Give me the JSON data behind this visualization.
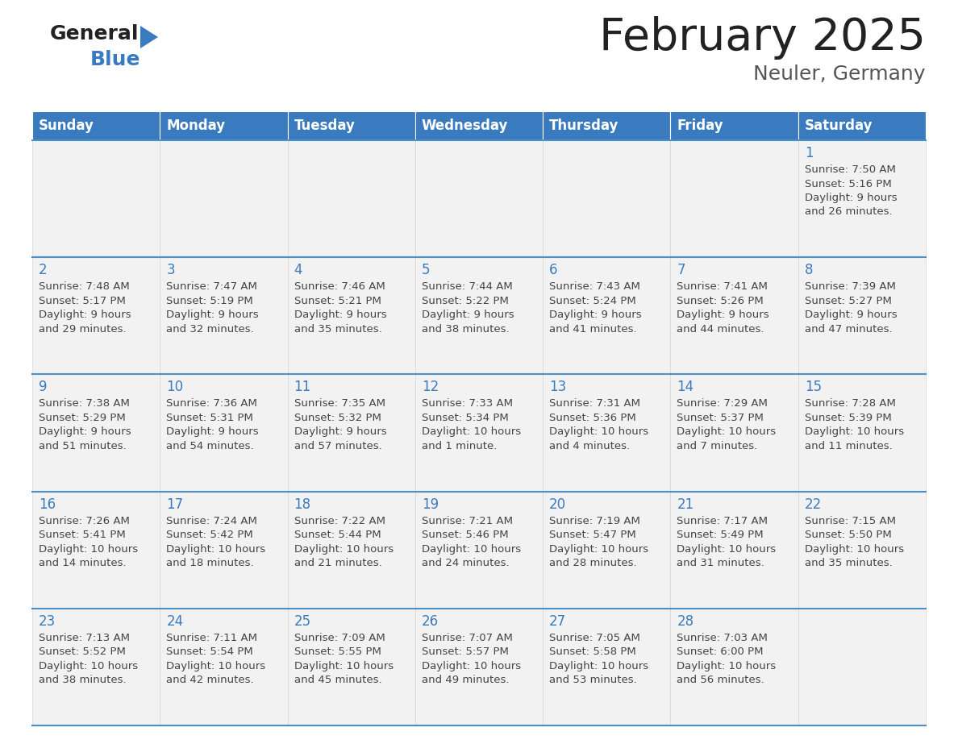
{
  "title": "February 2025",
  "subtitle": "Neuler, Germany",
  "header_bg_color": "#3a7bbf",
  "header_text_color": "#ffffff",
  "cell_bg_color": "#f2f2f2",
  "day_number_color": "#3a7bbf",
  "text_color": "#444444",
  "border_color": "#4a90c4",
  "days_of_week": [
    "Sunday",
    "Monday",
    "Tuesday",
    "Wednesday",
    "Thursday",
    "Friday",
    "Saturday"
  ],
  "title_color": "#222222",
  "subtitle_color": "#555555",
  "logo_general_color": "#222222",
  "logo_blue_color": "#3a7bbf",
  "logo_triangle_color": "#3a7bbf",
  "weeks": [
    [
      {
        "day": null,
        "sunrise": null,
        "sunset": null,
        "daylight": null
      },
      {
        "day": null,
        "sunrise": null,
        "sunset": null,
        "daylight": null
      },
      {
        "day": null,
        "sunrise": null,
        "sunset": null,
        "daylight": null
      },
      {
        "day": null,
        "sunrise": null,
        "sunset": null,
        "daylight": null
      },
      {
        "day": null,
        "sunrise": null,
        "sunset": null,
        "daylight": null
      },
      {
        "day": null,
        "sunrise": null,
        "sunset": null,
        "daylight": null
      },
      {
        "day": 1,
        "sunrise": "7:50 AM",
        "sunset": "5:16 PM",
        "daylight": "9 hours\nand 26 minutes."
      }
    ],
    [
      {
        "day": 2,
        "sunrise": "7:48 AM",
        "sunset": "5:17 PM",
        "daylight": "9 hours\nand 29 minutes."
      },
      {
        "day": 3,
        "sunrise": "7:47 AM",
        "sunset": "5:19 PM",
        "daylight": "9 hours\nand 32 minutes."
      },
      {
        "day": 4,
        "sunrise": "7:46 AM",
        "sunset": "5:21 PM",
        "daylight": "9 hours\nand 35 minutes."
      },
      {
        "day": 5,
        "sunrise": "7:44 AM",
        "sunset": "5:22 PM",
        "daylight": "9 hours\nand 38 minutes."
      },
      {
        "day": 6,
        "sunrise": "7:43 AM",
        "sunset": "5:24 PM",
        "daylight": "9 hours\nand 41 minutes."
      },
      {
        "day": 7,
        "sunrise": "7:41 AM",
        "sunset": "5:26 PM",
        "daylight": "9 hours\nand 44 minutes."
      },
      {
        "day": 8,
        "sunrise": "7:39 AM",
        "sunset": "5:27 PM",
        "daylight": "9 hours\nand 47 minutes."
      }
    ],
    [
      {
        "day": 9,
        "sunrise": "7:38 AM",
        "sunset": "5:29 PM",
        "daylight": "9 hours\nand 51 minutes."
      },
      {
        "day": 10,
        "sunrise": "7:36 AM",
        "sunset": "5:31 PM",
        "daylight": "9 hours\nand 54 minutes."
      },
      {
        "day": 11,
        "sunrise": "7:35 AM",
        "sunset": "5:32 PM",
        "daylight": "9 hours\nand 57 minutes."
      },
      {
        "day": 12,
        "sunrise": "7:33 AM",
        "sunset": "5:34 PM",
        "daylight": "10 hours\nand 1 minute."
      },
      {
        "day": 13,
        "sunrise": "7:31 AM",
        "sunset": "5:36 PM",
        "daylight": "10 hours\nand 4 minutes."
      },
      {
        "day": 14,
        "sunrise": "7:29 AM",
        "sunset": "5:37 PM",
        "daylight": "10 hours\nand 7 minutes."
      },
      {
        "day": 15,
        "sunrise": "7:28 AM",
        "sunset": "5:39 PM",
        "daylight": "10 hours\nand 11 minutes."
      }
    ],
    [
      {
        "day": 16,
        "sunrise": "7:26 AM",
        "sunset": "5:41 PM",
        "daylight": "10 hours\nand 14 minutes."
      },
      {
        "day": 17,
        "sunrise": "7:24 AM",
        "sunset": "5:42 PM",
        "daylight": "10 hours\nand 18 minutes."
      },
      {
        "day": 18,
        "sunrise": "7:22 AM",
        "sunset": "5:44 PM",
        "daylight": "10 hours\nand 21 minutes."
      },
      {
        "day": 19,
        "sunrise": "7:21 AM",
        "sunset": "5:46 PM",
        "daylight": "10 hours\nand 24 minutes."
      },
      {
        "day": 20,
        "sunrise": "7:19 AM",
        "sunset": "5:47 PM",
        "daylight": "10 hours\nand 28 minutes."
      },
      {
        "day": 21,
        "sunrise": "7:17 AM",
        "sunset": "5:49 PM",
        "daylight": "10 hours\nand 31 minutes."
      },
      {
        "day": 22,
        "sunrise": "7:15 AM",
        "sunset": "5:50 PM",
        "daylight": "10 hours\nand 35 minutes."
      }
    ],
    [
      {
        "day": 23,
        "sunrise": "7:13 AM",
        "sunset": "5:52 PM",
        "daylight": "10 hours\nand 38 minutes."
      },
      {
        "day": 24,
        "sunrise": "7:11 AM",
        "sunset": "5:54 PM",
        "daylight": "10 hours\nand 42 minutes."
      },
      {
        "day": 25,
        "sunrise": "7:09 AM",
        "sunset": "5:55 PM",
        "daylight": "10 hours\nand 45 minutes."
      },
      {
        "day": 26,
        "sunrise": "7:07 AM",
        "sunset": "5:57 PM",
        "daylight": "10 hours\nand 49 minutes."
      },
      {
        "day": 27,
        "sunrise": "7:05 AM",
        "sunset": "5:58 PM",
        "daylight": "10 hours\nand 53 minutes."
      },
      {
        "day": 28,
        "sunrise": "7:03 AM",
        "sunset": "6:00 PM",
        "daylight": "10 hours\nand 56 minutes."
      },
      {
        "day": null,
        "sunrise": null,
        "sunset": null,
        "daylight": null
      }
    ]
  ]
}
